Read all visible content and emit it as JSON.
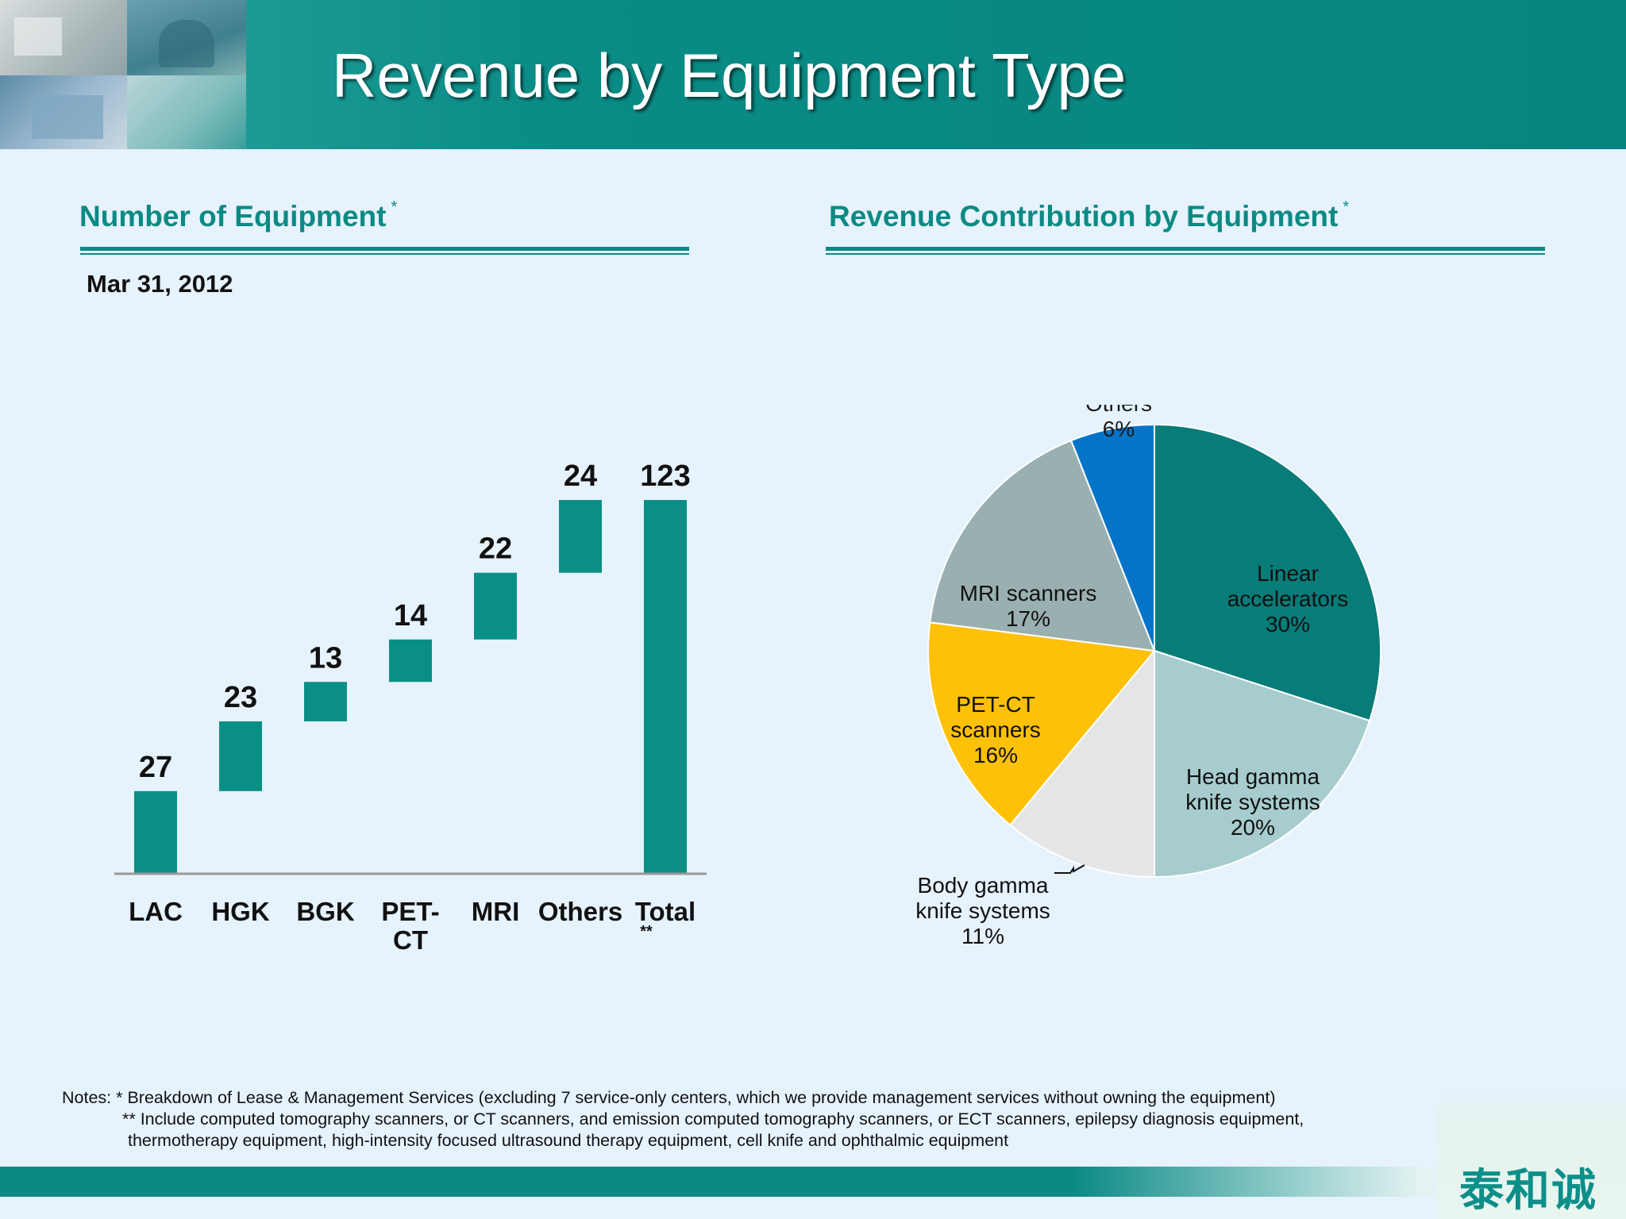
{
  "header": {
    "title": "Revenue by Equipment Type"
  },
  "left_panel": {
    "heading": "Number of Equipment",
    "heading_mark": "*",
    "date": "Mar 31, 2012"
  },
  "right_panel": {
    "heading": "Revenue Contribution by Equipment",
    "heading_mark": "*"
  },
  "chart_data": [
    {
      "type": "bar",
      "subtype": "waterfall",
      "categories": [
        "LAC",
        "HGK",
        "BGK",
        "PET-CT",
        "MRI",
        "Others",
        "Total"
      ],
      "category_lines": [
        [
          "LAC"
        ],
        [
          "HGK"
        ],
        [
          "BGK"
        ],
        [
          "PET-",
          "CT"
        ],
        [
          "MRI"
        ],
        [
          "Others"
        ],
        [
          "Total"
        ]
      ],
      "category_marks": [
        "",
        "",
        "",
        "",
        "",
        "",
        "**"
      ],
      "values": [
        27,
        23,
        13,
        14,
        22,
        24,
        123
      ],
      "total_index": 6,
      "ylim": [
        0,
        123
      ],
      "grid": false,
      "color": "#0a8f87"
    },
    {
      "type": "pie",
      "slices": [
        {
          "label_lines": [
            "Linear",
            "accelerators"
          ],
          "value": 30,
          "value_label": "30%",
          "color": "#077c79",
          "text_color": "#111111"
        },
        {
          "label_lines": [
            "Head gamma",
            "knife systems"
          ],
          "value": 20,
          "value_label": "20%",
          "color": "#a7cccd",
          "text_color": "#111111"
        },
        {
          "label_lines": [
            "Body gamma",
            "knife systems"
          ],
          "value": 11,
          "value_label": "11%",
          "color": "#e3e5e6",
          "text_color": "#111111"
        },
        {
          "label_lines": [
            "PET-CT",
            "scanners"
          ],
          "value": 16,
          "value_label": "16%",
          "color": "#fec107",
          "text_color": "#111111"
        },
        {
          "label_lines": [
            "MRI scanners"
          ],
          "value": 17,
          "value_label": "17%",
          "color": "#9aafb0",
          "text_color": "#111111"
        },
        {
          "label_lines": [
            "Others"
          ],
          "value": 6,
          "value_label": "6%",
          "color": "#0574c8",
          "text_color": "#1a1a1a"
        }
      ],
      "start_angle_deg": 0,
      "direction": "clockwise"
    }
  ],
  "notes": {
    "line1": "Notes: * Breakdown of Lease & Management Services (excluding 7 service-only centers, which we provide management services without owning the equipment)",
    "line2": "** Include computed tomography scanners, or CT scanners, and emission computed tomography scanners, or ECT scanners, epilepsy diagnosis equipment,",
    "line3": "thermotherapy equipment, high-intensity focused ultrasound therapy equipment, cell knife and ophthalmic equipment"
  },
  "footer": {
    "logo_text": "泰和诚"
  }
}
